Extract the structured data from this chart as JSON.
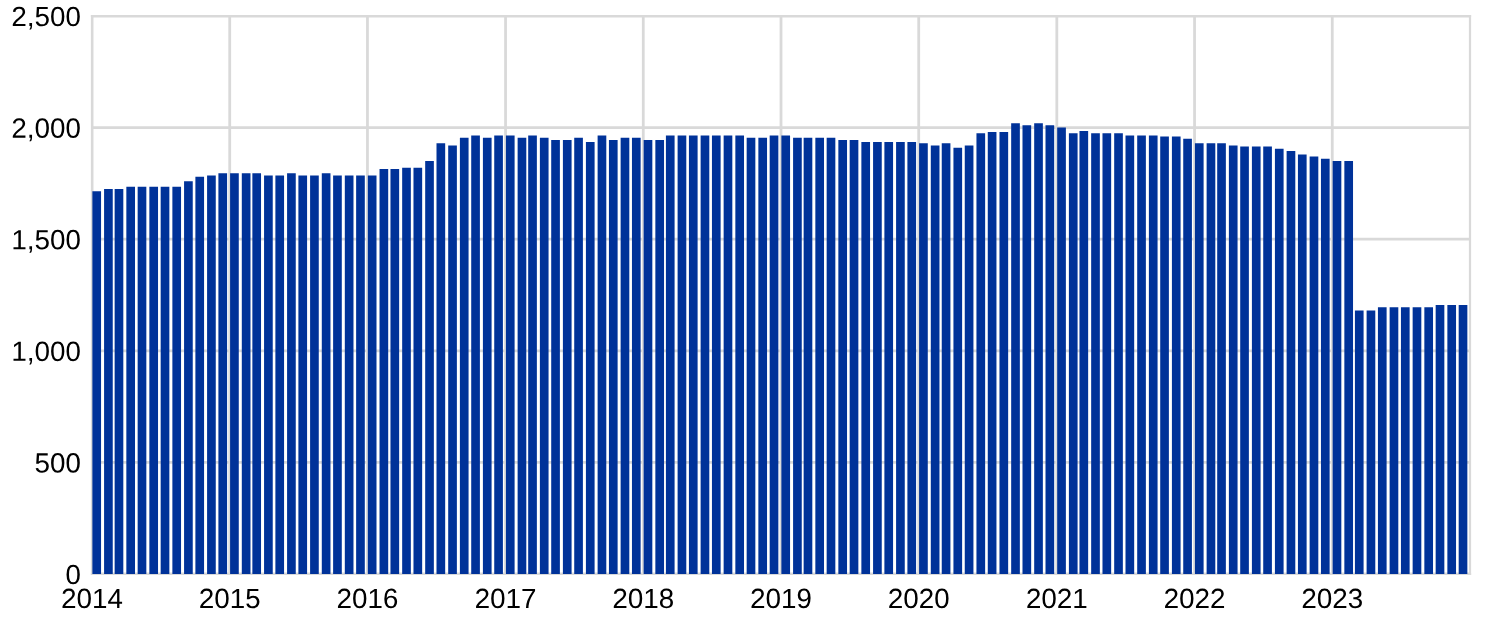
{
  "chart_data": {
    "type": "bar",
    "color": "#003299",
    "x": [
      "2014-01",
      "2014-02",
      "2014-03",
      "2014-04",
      "2014-05",
      "2014-06",
      "2014-07",
      "2014-08",
      "2014-09",
      "2014-10",
      "2014-11",
      "2014-12",
      "2015-01",
      "2015-02",
      "2015-03",
      "2015-04",
      "2015-05",
      "2015-06",
      "2015-07",
      "2015-08",
      "2015-09",
      "2015-10",
      "2015-11",
      "2015-12",
      "2016-01",
      "2016-02",
      "2016-03",
      "2016-04",
      "2016-05",
      "2016-06",
      "2016-07",
      "2016-08",
      "2016-09",
      "2016-10",
      "2016-11",
      "2016-12",
      "2017-01",
      "2017-02",
      "2017-03",
      "2017-04",
      "2017-05",
      "2017-06",
      "2017-07",
      "2017-08",
      "2017-09",
      "2017-10",
      "2017-11",
      "2017-12",
      "2018-01",
      "2018-02",
      "2018-03",
      "2018-04",
      "2018-05",
      "2018-06",
      "2018-07",
      "2018-08",
      "2018-09",
      "2018-10",
      "2018-11",
      "2018-12",
      "2019-01",
      "2019-02",
      "2019-03",
      "2019-04",
      "2019-05",
      "2019-06",
      "2019-07",
      "2019-08",
      "2019-09",
      "2019-10",
      "2019-11",
      "2019-12",
      "2020-01",
      "2020-02",
      "2020-03",
      "2020-04",
      "2020-05",
      "2020-06",
      "2020-07",
      "2020-08",
      "2020-09",
      "2020-10",
      "2020-11",
      "2020-12",
      "2021-01",
      "2021-02",
      "2021-03",
      "2021-04",
      "2021-05",
      "2021-06",
      "2021-07",
      "2021-08",
      "2021-09",
      "2021-10",
      "2021-11",
      "2021-12",
      "2022-01",
      "2022-02",
      "2022-03",
      "2022-04",
      "2022-05",
      "2022-06",
      "2022-07",
      "2022-08",
      "2022-09",
      "2022-10",
      "2022-11",
      "2022-12",
      "2023-01",
      "2023-02",
      "2023-03",
      "2023-04",
      "2023-05",
      "2023-06",
      "2023-07",
      "2023-08",
      "2023-09",
      "2023-10",
      "2023-11",
      "2023-12"
    ],
    "values": [
      1715,
      1725,
      1725,
      1735,
      1735,
      1735,
      1735,
      1735,
      1760,
      1780,
      1785,
      1795,
      1795,
      1795,
      1795,
      1785,
      1785,
      1795,
      1785,
      1785,
      1795,
      1785,
      1785,
      1785,
      1785,
      1815,
      1815,
      1820,
      1820,
      1850,
      1930,
      1920,
      1955,
      1965,
      1955,
      1965,
      1965,
      1955,
      1965,
      1955,
      1945,
      1945,
      1955,
      1935,
      1965,
      1945,
      1955,
      1955,
      1945,
      1945,
      1965,
      1965,
      1965,
      1965,
      1965,
      1965,
      1965,
      1955,
      1955,
      1965,
      1965,
      1955,
      1955,
      1955,
      1955,
      1945,
      1945,
      1935,
      1935,
      1935,
      1935,
      1935,
      1930,
      1920,
      1930,
      1910,
      1920,
      1975,
      1980,
      1980,
      2020,
      2010,
      2020,
      2010,
      2000,
      1975,
      1985,
      1975,
      1975,
      1975,
      1965,
      1965,
      1965,
      1960,
      1960,
      1950,
      1930,
      1930,
      1930,
      1920,
      1915,
      1915,
      1915,
      1905,
      1895,
      1880,
      1870,
      1860,
      1850,
      1850,
      1180,
      1180,
      1195,
      1195,
      1195,
      1195,
      1195,
      1205,
      1205,
      1205
    ],
    "xlim": [
      "2014",
      "2024"
    ],
    "xticks": [
      "2014",
      "2015",
      "2016",
      "2017",
      "2018",
      "2019",
      "2020",
      "2021",
      "2022",
      "2023"
    ],
    "ylim": [
      0,
      2500
    ],
    "yticks": [
      0,
      500,
      {
        "value": 1000,
        "label": "1,000"
      },
      {
        "value": 1500,
        "label": "1,500"
      },
      {
        "value": 2000,
        "label": "2,000"
      },
      {
        "value": 2500,
        "label": "2,500"
      }
    ],
    "grid": true
  }
}
